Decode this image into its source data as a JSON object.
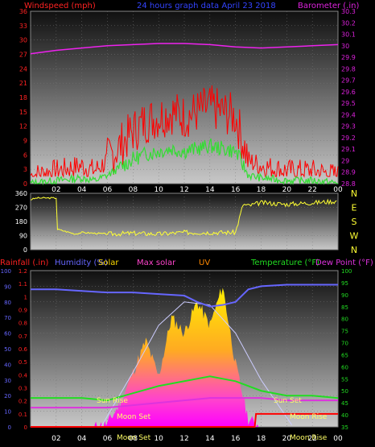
{
  "header": {
    "windspeed_label": "Windspeed (mph)",
    "date_label": "24 hours graph data   April 23 2018",
    "barometer_label": "Barometer (.in)"
  },
  "labels": {
    "rainfall": "Rainfall (.in)",
    "humidity": "Humidity (%)",
    "solar": "Solar",
    "max_solar": "Max solar",
    "uv": "UV",
    "temperature": "Temperature (°F)",
    "dew_point": "Dew Point (°F)",
    "sun_rise": "Sun Rise",
    "sun_set": "Sun Set",
    "moon_set": "Moon Set",
    "moon_rise": "Moon Rise"
  },
  "x_ticks": [
    "02",
    "04",
    "06",
    "08",
    "10",
    "12",
    "14",
    "16",
    "18",
    "20",
    "22",
    "00"
  ],
  "wind_axis_ticks": [
    "0",
    "3",
    "6",
    "9",
    "12",
    "15",
    "18",
    "21",
    "24",
    "27",
    "30",
    "33",
    "36"
  ],
  "baro_axis_ticks": [
    "28.8",
    "28.9",
    "29",
    "29.1",
    "29.2",
    "29.3",
    "29.4",
    "29.5",
    "29.6",
    "29.7",
    "29.8",
    "29.9",
    "30",
    "30.1",
    "30.2",
    "30.3"
  ],
  "dir_axis_ticks": [
    "0",
    "90",
    "180",
    "270",
    "360"
  ],
  "compass_letters": [
    "N",
    "W",
    "S",
    "E",
    "N"
  ],
  "humidity_axis_ticks": [
    "0",
    "10",
    "20",
    "30",
    "40",
    "50",
    "60",
    "70",
    "80",
    "90",
    "100"
  ],
  "rain_axis_ticks": [
    "0",
    "0.1",
    "0.2",
    "0.3",
    "0.4",
    "0.5",
    "0.6",
    "0.7",
    "0.8",
    "0.9",
    "1",
    "1.1",
    "1.2"
  ],
  "temp_axis_ticks": [
    "35",
    "40",
    "45",
    "50",
    "55",
    "60",
    "65",
    "70",
    "75",
    "80",
    "85",
    "90",
    "95",
    "100"
  ],
  "colors": {
    "wind_gust": "#ff0000",
    "wind_avg": "#33dd33",
    "barometer": "#ee22ee",
    "direction": "#ffff33",
    "humidity": "#6666ff",
    "temperature": "#22dd22",
    "dew_point": "#dd33dd",
    "rainfall": "#ff0000",
    "solar": "#ffdd00",
    "max_solar": "#ccccff"
  },
  "chart_data": [
    {
      "type": "line",
      "x_unit": "hour of day",
      "series": [
        {
          "name": "Windspeed (mph)",
          "axis": "left",
          "ylim": [
            0,
            36
          ],
          "x": [
            0,
            2,
            4,
            5,
            6,
            7,
            8,
            9,
            10,
            11,
            12,
            13,
            14,
            15,
            16,
            17,
            18,
            20,
            22,
            24
          ],
          "values": [
            0,
            1,
            2,
            1,
            3,
            6,
            9,
            11,
            12,
            13,
            12,
            13,
            14,
            13,
            12,
            3,
            2,
            1,
            1,
            0
          ]
        },
        {
          "name": "Barometer (.in)",
          "axis": "right",
          "ylim": [
            28.8,
            30.3
          ],
          "x": [
            0,
            2,
            4,
            6,
            8,
            10,
            12,
            14,
            16,
            18,
            20,
            22,
            24
          ],
          "values": [
            29.93,
            29.96,
            29.98,
            30.0,
            30.01,
            30.02,
            30.02,
            30.01,
            29.99,
            29.98,
            29.99,
            30.0,
            30.01
          ]
        }
      ]
    },
    {
      "type": "line",
      "name": "Wind direction",
      "ylim": [
        0,
        360
      ],
      "x": [
        0,
        0.5,
        2,
        2.1,
        3.5,
        4,
        6,
        8,
        10,
        12,
        14,
        16,
        16.6,
        17,
        18,
        20,
        22,
        24
      ],
      "values": [
        320,
        330,
        330,
        130,
        100,
        110,
        100,
        105,
        100,
        110,
        110,
        110,
        290,
        280,
        300,
        290,
        300,
        310
      ]
    },
    {
      "type": "area",
      "series": [
        {
          "name": "Humidity (%)",
          "axis": "left",
          "ylim": [
            0,
            100
          ],
          "x": [
            0,
            2,
            4,
            6,
            8,
            10,
            12,
            13,
            14,
            15,
            16,
            17,
            18,
            20,
            22,
            24
          ],
          "values": [
            88,
            88,
            87,
            86,
            86,
            85,
            84,
            80,
            77,
            78,
            80,
            88,
            90,
            91,
            91,
            91
          ]
        },
        {
          "name": "Solar",
          "ylim": [
            0,
            1000
          ],
          "x": [
            5,
            6,
            7,
            8,
            9,
            10,
            11,
            12,
            13,
            14,
            15,
            16,
            17,
            18
          ],
          "values": [
            0,
            20,
            150,
            350,
            550,
            320,
            700,
            600,
            800,
            650,
            900,
            400,
            50,
            0
          ]
        },
        {
          "name": "Max solar",
          "ylim": [
            0,
            1000
          ],
          "x": [
            5.5,
            8,
            10,
            12,
            14,
            16,
            18,
            20.5
          ],
          "values": [
            0,
            350,
            650,
            800,
            780,
            600,
            300,
            0
          ]
        },
        {
          "name": "Temperature (°F)",
          "axis": "right",
          "ylim": [
            35,
            100
          ],
          "x": [
            0,
            2,
            4,
            6,
            8,
            10,
            12,
            14,
            16,
            18,
            20,
            22,
            24
          ],
          "values": [
            47,
            47,
            47,
            46,
            49,
            52,
            54,
            56,
            54,
            50,
            48,
            48,
            47
          ]
        },
        {
          "name": "Dew Point (°F)",
          "axis": "right",
          "ylim": [
            35,
            100
          ],
          "x": [
            0,
            2,
            4,
            6,
            8,
            10,
            12,
            14,
            16,
            18,
            20,
            22,
            24
          ],
          "values": [
            43,
            43,
            43,
            43,
            44,
            45,
            46,
            47,
            47,
            47,
            46,
            46,
            46
          ]
        },
        {
          "name": "Rainfall (.in)",
          "axis": "left",
          "ylim": [
            0,
            1.2
          ],
          "x": [
            0,
            17.5,
            17.6,
            24
          ],
          "values": [
            0,
            0,
            0.1,
            0.1
          ]
        }
      ]
    }
  ]
}
